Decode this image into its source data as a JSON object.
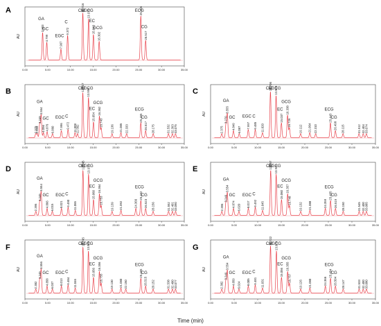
{
  "xlabel": "Time (min)",
  "chart_data": [
    {
      "type": "line",
      "panel_label": "A",
      "ylabel": "AU",
      "xlim": [
        0,
        35
      ],
      "xticks": [
        "0.00",
        "5.00",
        "10.00",
        "15.00",
        "20.00",
        "25.00",
        "30.00",
        "35.00"
      ],
      "peaks": [
        {
          "name": "GA",
          "rt": "3.883",
          "x": 3.883,
          "h": 0.56
        },
        {
          "name": "GC",
          "rt": "4.799",
          "x": 4.799,
          "h": 0.36
        },
        {
          "name": "EGC",
          "rt": "7.907",
          "x": 7.907,
          "h": 0.22
        },
        {
          "name": "C",
          "rt": "9.372",
          "x": 9.372,
          "h": 0.5
        },
        {
          "name": "Caf",
          "rt": "12.716",
          "x": 12.716,
          "h": 0.96
        },
        {
          "name": "EGCG",
          "rt": "13.979",
          "x": 13.979,
          "h": 0.84
        },
        {
          "name": "EC",
          "rt": "15.043",
          "x": 15.043,
          "h": 0.52
        },
        {
          "name": "GCG",
          "rt": "16.302",
          "x": 16.302,
          "h": 0.38
        },
        {
          "name": "ECG",
          "rt": "25.455",
          "x": 25.455,
          "h": 0.9
        },
        {
          "name": "CG",
          "rt": "26.517",
          "x": 26.517,
          "h": 0.4
        }
      ]
    },
    {
      "type": "line",
      "panel_label": "B",
      "ylabel": "AU",
      "xlim": [
        0,
        35
      ],
      "xticks": [
        "0.00",
        "5.00",
        "10.00",
        "15.00",
        "20.00",
        "25.00",
        "30.00",
        "35.00"
      ],
      "peaks": [
        {
          "name": "",
          "rt": "2.375",
          "x": 2.375,
          "h": 0.08
        },
        {
          "name": "",
          "rt": "2.696",
          "x": 2.696,
          "h": 0.08
        },
        {
          "name": "",
          "rt": "3.249",
          "x": 3.249,
          "h": 0.28
        },
        {
          "name": "GA",
          "rt": "3.554",
          "x": 3.554,
          "h": 0.46
        },
        {
          "name": "",
          "rt": "4.056",
          "x": 4.056,
          "h": 0.1
        },
        {
          "name": "GC",
          "rt": "4.876",
          "x": 4.876,
          "h": 0.12
        },
        {
          "name": "",
          "rt": "6.060",
          "x": 6.06,
          "h": 0.08
        },
        {
          "name": "EGC",
          "rt": "7.996",
          "x": 7.996,
          "h": 0.14
        },
        {
          "name": "C",
          "rt": "9.472",
          "x": 9.472,
          "h": 0.16
        },
        {
          "name": "",
          "rt": "11.008",
          "x": 11.008,
          "h": 0.1
        },
        {
          "name": "",
          "rt": "11.562",
          "x": 11.562,
          "h": 0.08
        },
        {
          "name": "Caf",
          "rt": "12.717",
          "x": 12.717,
          "h": 0.92
        },
        {
          "name": "EGCG",
          "rt": "13.959",
          "x": 13.959,
          "h": 0.82
        },
        {
          "name": "EC",
          "rt": "15.054",
          "x": 15.054,
          "h": 0.32
        },
        {
          "name": "GCG",
          "rt": "16.362",
          "x": 16.362,
          "h": 0.44
        },
        {
          "name": "",
          "rt": "16.743",
          "x": 16.743,
          "h": 0.2
        },
        {
          "name": "",
          "rt": "19.136",
          "x": 19.136,
          "h": 0.08
        },
        {
          "name": "",
          "rt": "21.085",
          "x": 21.085,
          "h": 0.1
        },
        {
          "name": "",
          "rt": "22.333",
          "x": 22.333,
          "h": 0.08
        },
        {
          "name": "ECG",
          "rt": "25.455",
          "x": 25.455,
          "h": 0.3
        },
        {
          "name": "CG",
          "rt": "26.517",
          "x": 26.517,
          "h": 0.14
        },
        {
          "name": "",
          "rt": "28.175",
          "x": 28.175,
          "h": 0.08
        },
        {
          "name": "",
          "rt": "31.532",
          "x": 31.532,
          "h": 0.08
        },
        {
          "name": "",
          "rt": "32.393",
          "x": 32.393,
          "h": 0.08
        },
        {
          "name": "",
          "rt": "33.075",
          "x": 33.075,
          "h": 0.08
        }
      ]
    },
    {
      "type": "line",
      "panel_label": "C",
      "ylabel": "AU",
      "xlim": [
        0,
        35
      ],
      "xticks": [
        "0.00",
        "5.00",
        "10.00",
        "15.00",
        "20.00",
        "25.00",
        "30.00",
        "35.00"
      ],
      "peaks": [
        {
          "name": "",
          "rt": "2.375",
          "x": 2.375,
          "h": 0.08
        },
        {
          "name": "",
          "rt": "3.270",
          "x": 3.27,
          "h": 0.28
        },
        {
          "name": "GA",
          "rt": "3.555",
          "x": 3.555,
          "h": 0.48
        },
        {
          "name": "GC",
          "rt": "4.849",
          "x": 4.849,
          "h": 0.14
        },
        {
          "name": "",
          "rt": "6.087",
          "x": 6.087,
          "h": 0.08
        },
        {
          "name": "EGC",
          "rt": "7.997",
          "x": 7.997,
          "h": 0.16
        },
        {
          "name": "C",
          "rt": "9.485",
          "x": 9.485,
          "h": 0.16
        },
        {
          "name": "",
          "rt": "11.020",
          "x": 11.02,
          "h": 0.1
        },
        {
          "name": "Caf",
          "rt": "12.706",
          "x": 12.706,
          "h": 0.94
        },
        {
          "name": "EGCG",
          "rt": "13.903",
          "x": 13.903,
          "h": 0.86
        },
        {
          "name": "EC",
          "rt": "15.037",
          "x": 15.037,
          "h": 0.3
        },
        {
          "name": "GCG",
          "rt": "16.338",
          "x": 16.338,
          "h": 0.46
        },
        {
          "name": "",
          "rt": "16.726",
          "x": 16.726,
          "h": 0.2
        },
        {
          "name": "",
          "rt": "19.112",
          "x": 19.112,
          "h": 0.08
        },
        {
          "name": "",
          "rt": "21.064",
          "x": 21.064,
          "h": 0.1
        },
        {
          "name": "",
          "rt": "22.310",
          "x": 22.31,
          "h": 0.08
        },
        {
          "name": "ECG",
          "rt": "25.443",
          "x": 25.443,
          "h": 0.3
        },
        {
          "name": "CG",
          "rt": "26.498",
          "x": 26.498,
          "h": 0.14
        },
        {
          "name": "",
          "rt": "28.115",
          "x": 28.115,
          "h": 0.08
        },
        {
          "name": "",
          "rt": "31.512",
          "x": 31.512,
          "h": 0.08
        },
        {
          "name": "",
          "rt": "32.404",
          "x": 32.404,
          "h": 0.08
        },
        {
          "name": "",
          "rt": "33.074",
          "x": 33.074,
          "h": 0.08
        }
      ]
    },
    {
      "type": "line",
      "panel_label": "D",
      "ylabel": "AU",
      "xlim": [
        0,
        35
      ],
      "xticks": [
        "0.00",
        "5.00",
        "10.00",
        "15.00",
        "20.00",
        "25.00",
        "30.00",
        "35.00"
      ],
      "peaks": [
        {
          "name": "",
          "rt": "2.396",
          "x": 2.396,
          "h": 0.08
        },
        {
          "name": "",
          "rt": "3.249",
          "x": 3.249,
          "h": 0.28
        },
        {
          "name": "GA",
          "rt": "3.554",
          "x": 3.554,
          "h": 0.48
        },
        {
          "name": "GC",
          "rt": "4.866",
          "x": 4.866,
          "h": 0.14
        },
        {
          "name": "",
          "rt": "6.015",
          "x": 6.015,
          "h": 0.08
        },
        {
          "name": "EGC",
          "rt": "8.021",
          "x": 8.021,
          "h": 0.14
        },
        {
          "name": "C",
          "rt": "9.490",
          "x": 9.49,
          "h": 0.16
        },
        {
          "name": "",
          "rt": "11.065",
          "x": 11.065,
          "h": 0.1
        },
        {
          "name": "Caf",
          "rt": "12.745",
          "x": 12.745,
          "h": 0.92
        },
        {
          "name": "EGCG",
          "rt": "13.974",
          "x": 13.974,
          "h": 0.84
        },
        {
          "name": "EC",
          "rt": "15.060",
          "x": 15.06,
          "h": 0.32
        },
        {
          "name": "GCG",
          "rt": "16.364",
          "x": 16.364,
          "h": 0.44
        },
        {
          "name": "",
          "rt": "16.753",
          "x": 16.753,
          "h": 0.2
        },
        {
          "name": "",
          "rt": "19.139",
          "x": 19.139,
          "h": 0.08
        },
        {
          "name": "",
          "rt": "21.092",
          "x": 21.092,
          "h": 0.1
        },
        {
          "name": "",
          "rt": "24.366",
          "x": 24.366,
          "h": 0.14
        },
        {
          "name": "ECG",
          "rt": "25.462",
          "x": 25.462,
          "h": 0.3
        },
        {
          "name": "CG",
          "rt": "26.523",
          "x": 26.523,
          "h": 0.14
        },
        {
          "name": "",
          "rt": "28.156",
          "x": 28.156,
          "h": 0.08
        },
        {
          "name": "",
          "rt": "31.552",
          "x": 31.552,
          "h": 0.08
        },
        {
          "name": "",
          "rt": "32.401",
          "x": 32.401,
          "h": 0.08
        },
        {
          "name": "",
          "rt": "33.090",
          "x": 33.09,
          "h": 0.08
        }
      ]
    },
    {
      "type": "line",
      "panel_label": "E",
      "ylabel": "AU",
      "xlim": [
        0,
        35
      ],
      "xticks": [
        "0.00",
        "5.00",
        "10.00",
        "15.00",
        "20.00",
        "25.00",
        "30.00",
        "35.00"
      ],
      "peaks": [
        {
          "name": "",
          "rt": "2.396",
          "x": 2.396,
          "h": 0.08
        },
        {
          "name": "",
          "rt": "3.249",
          "x": 3.249,
          "h": 0.26
        },
        {
          "name": "GA",
          "rt": "3.554",
          "x": 3.554,
          "h": 0.46
        },
        {
          "name": "GC",
          "rt": "4.874",
          "x": 4.874,
          "h": 0.14
        },
        {
          "name": "",
          "rt": "6.020",
          "x": 6.02,
          "h": 0.08
        },
        {
          "name": "EGC",
          "rt": "8.017",
          "x": 8.017,
          "h": 0.14
        },
        {
          "name": "C",
          "rt": "9.492",
          "x": 9.492,
          "h": 0.16
        },
        {
          "name": "",
          "rt": "11.045",
          "x": 11.045,
          "h": 0.1
        },
        {
          "name": "Caf",
          "rt": "12.757",
          "x": 12.757,
          "h": 0.92
        },
        {
          "name": "EGCG",
          "rt": "13.922",
          "x": 13.922,
          "h": 0.84
        },
        {
          "name": "EC",
          "rt": "15.060",
          "x": 15.06,
          "h": 0.32
        },
        {
          "name": "GCG",
          "rt": "16.357",
          "x": 16.357,
          "h": 0.44
        },
        {
          "name": "",
          "rt": "16.748",
          "x": 16.748,
          "h": 0.2
        },
        {
          "name": "",
          "rt": "19.132",
          "x": 19.132,
          "h": 0.08
        },
        {
          "name": "",
          "rt": "21.088",
          "x": 21.088,
          "h": 0.1
        },
        {
          "name": "",
          "rt": "24.359",
          "x": 24.359,
          "h": 0.14
        },
        {
          "name": "ECG",
          "rt": "25.465",
          "x": 25.465,
          "h": 0.3
        },
        {
          "name": "CG",
          "rt": "26.519",
          "x": 26.519,
          "h": 0.14
        },
        {
          "name": "",
          "rt": "28.150",
          "x": 28.15,
          "h": 0.08
        },
        {
          "name": "",
          "rt": "31.545",
          "x": 31.545,
          "h": 0.08
        },
        {
          "name": "",
          "rt": "32.400",
          "x": 32.4,
          "h": 0.08
        },
        {
          "name": "",
          "rt": "33.085",
          "x": 33.085,
          "h": 0.08
        }
      ]
    },
    {
      "type": "line",
      "panel_label": "F",
      "ylabel": "AU",
      "xlim": [
        0,
        35
      ],
      "xticks": [
        "0.00",
        "5.00",
        "10.00",
        "15.00",
        "20.00",
        "25.00",
        "30.00",
        "35.00"
      ],
      "peaks": [
        {
          "name": "",
          "rt": "2.382",
          "x": 2.382,
          "h": 0.08
        },
        {
          "name": "",
          "rt": "3.249",
          "x": 3.249,
          "h": 0.28
        },
        {
          "name": "GA",
          "rt": "3.556",
          "x": 3.556,
          "h": 0.48
        },
        {
          "name": "GC",
          "rt": "4.858",
          "x": 4.858,
          "h": 0.14
        },
        {
          "name": "",
          "rt": "6.037",
          "x": 6.037,
          "h": 0.08
        },
        {
          "name": "EGC",
          "rt": "8.013",
          "x": 8.013,
          "h": 0.14
        },
        {
          "name": "C",
          "rt": "9.484",
          "x": 9.484,
          "h": 0.16
        },
        {
          "name": "",
          "rt": "11.046",
          "x": 11.046,
          "h": 0.1
        },
        {
          "name": "Caf",
          "rt": "12.745",
          "x": 12.745,
          "h": 0.94
        },
        {
          "name": "EGCG",
          "rt": "13.945",
          "x": 13.945,
          "h": 0.86
        },
        {
          "name": "EC",
          "rt": "15.056",
          "x": 15.056,
          "h": 0.32
        },
        {
          "name": "GCG",
          "rt": "16.356",
          "x": 16.356,
          "h": 0.44
        },
        {
          "name": "",
          "rt": "16.755",
          "x": 16.755,
          "h": 0.2
        },
        {
          "name": "",
          "rt": "19.130",
          "x": 19.13,
          "h": 0.08
        },
        {
          "name": "",
          "rt": "21.080",
          "x": 21.08,
          "h": 0.1
        },
        {
          "name": "",
          "rt": "22.150",
          "x": 22.15,
          "h": 0.08
        },
        {
          "name": "ECG",
          "rt": "25.465",
          "x": 25.465,
          "h": 0.3
        },
        {
          "name": "CG",
          "rt": "26.515",
          "x": 26.515,
          "h": 0.14
        },
        {
          "name": "",
          "rt": "28.152",
          "x": 28.152,
          "h": 0.08
        },
        {
          "name": "",
          "rt": "31.538",
          "x": 31.538,
          "h": 0.08
        },
        {
          "name": "",
          "rt": "32.400",
          "x": 32.4,
          "h": 0.08
        },
        {
          "name": "",
          "rt": "33.077",
          "x": 33.077,
          "h": 0.08
        }
      ]
    },
    {
      "type": "line",
      "panel_label": "G",
      "ylabel": "AU",
      "xlim": [
        0,
        35
      ],
      "xticks": [
        "0.00",
        "5.00",
        "10.00",
        "15.00",
        "20.00",
        "25.00",
        "30.00",
        "35.00"
      ],
      "peaks": [
        {
          "name": "",
          "rt": "2.382",
          "x": 2.382,
          "h": 0.08
        },
        {
          "name": "",
          "rt": "3.249",
          "x": 3.249,
          "h": 0.26
        },
        {
          "name": "GA",
          "rt": "3.554",
          "x": 3.554,
          "h": 0.46
        },
        {
          "name": "GC",
          "rt": "4.859",
          "x": 4.859,
          "h": 0.14
        },
        {
          "name": "",
          "rt": "6.024",
          "x": 6.024,
          "h": 0.08
        },
        {
          "name": "EGC",
          "rt": "8.005",
          "x": 8.005,
          "h": 0.14
        },
        {
          "name": "C",
          "rt": "9.481",
          "x": 9.481,
          "h": 0.16
        },
        {
          "name": "",
          "rt": "11.031",
          "x": 11.031,
          "h": 0.1
        },
        {
          "name": "Caf",
          "rt": "12.722",
          "x": 12.722,
          "h": 0.96
        },
        {
          "name": "EGCG",
          "rt": "13.979",
          "x": 13.979,
          "h": 0.86
        },
        {
          "name": "EC",
          "rt": "15.056",
          "x": 15.056,
          "h": 0.32
        },
        {
          "name": "GCG",
          "rt": "16.355",
          "x": 16.355,
          "h": 0.44
        },
        {
          "name": "",
          "rt": "16.757",
          "x": 16.757,
          "h": 0.2
        },
        {
          "name": "",
          "rt": "19.126",
          "x": 19.126,
          "h": 0.08
        },
        {
          "name": "",
          "rt": "21.080",
          "x": 21.08,
          "h": 0.1
        },
        {
          "name": "",
          "rt": "24.366",
          "x": 24.366,
          "h": 0.14
        },
        {
          "name": "ECG",
          "rt": "25.464",
          "x": 25.464,
          "h": 0.3
        },
        {
          "name": "CG",
          "rt": "26.504",
          "x": 26.504,
          "h": 0.14
        },
        {
          "name": "",
          "rt": "28.147",
          "x": 28.147,
          "h": 0.08
        },
        {
          "name": "",
          "rt": "31.533",
          "x": 31.533,
          "h": 0.08
        },
        {
          "name": "",
          "rt": "32.400",
          "x": 32.4,
          "h": 0.08
        },
        {
          "name": "",
          "rt": "33.080",
          "x": 33.08,
          "h": 0.08
        }
      ]
    }
  ],
  "colors": {
    "trace": "#e8404a",
    "baseline": "#f2a0a6",
    "axis": "#444444",
    "text": "#222222"
  }
}
